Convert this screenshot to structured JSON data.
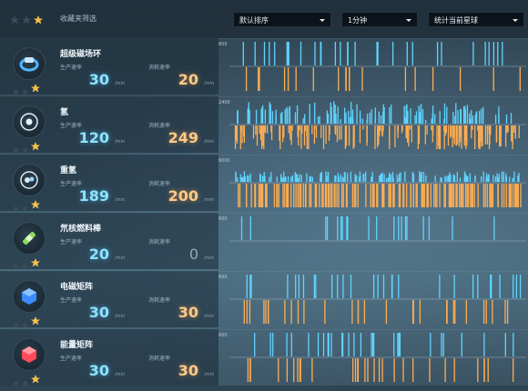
{
  "header": {
    "filter_label": "收藏夹筛选",
    "sort_select": "默认排序",
    "time_select": "1分钟",
    "scope_select": "统计当前星球"
  },
  "labels": {
    "production": "生产速率",
    "consumption": "消耗速率",
    "unit": "/min"
  },
  "colors": {
    "production": "#5fd4ff",
    "consumption": "#ffad52",
    "star_gold": "#f7c04a",
    "star_dim": "#3c4c57"
  },
  "items": [
    {
      "name": "超级磁场环",
      "icon": "super-magnetic-ring-icon",
      "icon_color": "#4fb8ff",
      "stars": 1,
      "production": "30",
      "consumption": "20",
      "scale": "600",
      "prod_density": 30,
      "cons_density": 20,
      "prod_level": 1.0,
      "cons_level": 1.0
    },
    {
      "name": "氢",
      "icon": "hydrogen-icon",
      "icon_color": "#e8f2f7",
      "stars": 1,
      "production": "120",
      "consumption": "249",
      "scale": "2400",
      "prod_density": 120,
      "cons_density": 249,
      "prod_level": 0.4,
      "cons_level": 0.5
    },
    {
      "name": "重氢",
      "icon": "deuterium-icon",
      "icon_color": "#dfe9ef",
      "stars": 1,
      "production": "189",
      "consumption": "200",
      "scale": "6000",
      "prod_density": 189,
      "cons_density": 200,
      "prod_level": 0.15,
      "cons_level": 1.0
    },
    {
      "name": "氘核燃料棒",
      "icon": "deuteron-fuel-rod-icon",
      "icon_color": "#8fdc5a",
      "stars": 1,
      "production": "20",
      "consumption": "0",
      "scale": "600",
      "prod_density": 20,
      "cons_density": 0,
      "prod_level": 1.0,
      "cons_level": 0
    },
    {
      "name": "电磁矩阵",
      "icon": "electromagnetic-matrix-icon",
      "icon_color": "#3a8cff",
      "stars": 1,
      "production": "30",
      "consumption": "30",
      "scale": "600",
      "prod_density": 30,
      "cons_density": 30,
      "prod_level": 1.0,
      "cons_level": 1.0
    },
    {
      "name": "能量矩阵",
      "icon": "energy-matrix-icon",
      "icon_color": "#ff4a5a",
      "stars": 1,
      "production": "30",
      "consumption": "30",
      "scale": "600",
      "prod_density": 30,
      "cons_density": 30,
      "prod_level": 1.0,
      "cons_level": 1.0
    }
  ]
}
